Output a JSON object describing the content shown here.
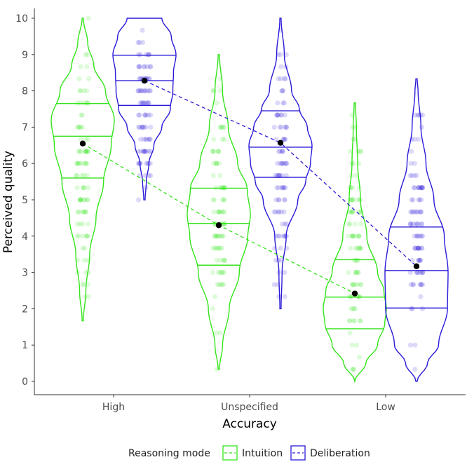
{
  "chart_data": {
    "type": "violin",
    "title": "",
    "xlabel": "Accuracy",
    "ylabel": "Perceived quality",
    "ylim": [
      0,
      10
    ],
    "yticks": [
      0,
      1,
      2,
      3,
      4,
      5,
      6,
      7,
      8,
      9,
      10
    ],
    "categories": [
      "High",
      "Unspecified",
      "Low"
    ],
    "legend": {
      "title": "Reasoning mode",
      "position": "bottom",
      "items": [
        "Intuition",
        "Deliberation"
      ]
    },
    "series": [
      {
        "name": "Intuition",
        "color": "#33e41a",
        "means": [
          6.55,
          4.3,
          2.42
        ],
        "quartiles": [
          {
            "q1": 5.6,
            "median": 6.75,
            "q3": 7.65
          },
          {
            "q1": 3.2,
            "median": 4.35,
            "q3": 5.32
          },
          {
            "q1": 1.45,
            "median": 2.32,
            "q3": 3.35
          }
        ],
        "ranges": [
          [
            1.67,
            10
          ],
          [
            0.33,
            9
          ],
          [
            0,
            7.67
          ]
        ],
        "density_profiles": [
          [
            [
              1.67,
              0.02
            ],
            [
              2.5,
              0.1
            ],
            [
              3.5,
              0.22
            ],
            [
              4.5,
              0.42
            ],
            [
              5.5,
              0.66
            ],
            [
              6.5,
              0.9
            ],
            [
              7.2,
              1.0
            ],
            [
              8.0,
              0.72
            ],
            [
              8.7,
              0.35
            ],
            [
              9.3,
              0.16
            ],
            [
              10,
              0.02
            ]
          ],
          [
            [
              0.33,
              0.02
            ],
            [
              1.0,
              0.12
            ],
            [
              2.0,
              0.33
            ],
            [
              3.0,
              0.65
            ],
            [
              4.0,
              0.92
            ],
            [
              4.6,
              1.0
            ],
            [
              5.3,
              0.9
            ],
            [
              6.0,
              0.6
            ],
            [
              7.0,
              0.3
            ],
            [
              8.0,
              0.12
            ],
            [
              9.0,
              0.02
            ]
          ],
          [
            [
              0,
              0.0
            ],
            [
              0.5,
              0.35
            ],
            [
              1.0,
              0.72
            ],
            [
              1.6,
              0.95
            ],
            [
              2.0,
              1.0
            ],
            [
              2.5,
              0.92
            ],
            [
              3.0,
              0.72
            ],
            [
              4.0,
              0.38
            ],
            [
              5.0,
              0.18
            ],
            [
              6.0,
              0.09
            ],
            [
              7.0,
              0.05
            ],
            [
              7.67,
              0.02
            ]
          ]
        ]
      },
      {
        "name": "Deliberation",
        "color": "#2a1ad8",
        "means": [
          8.28,
          6.57,
          3.17
        ],
        "quartiles": [
          {
            "q1": 7.6,
            "median": 8.28,
            "q3": 8.98
          },
          {
            "q1": 5.62,
            "median": 6.45,
            "q3": 7.45
          },
          {
            "q1": 2.02,
            "median": 3.05,
            "q3": 4.25
          }
        ],
        "ranges": [
          [
            5,
            10
          ],
          [
            2,
            10
          ],
          [
            0,
            8.33
          ]
        ],
        "density_profiles": [
          [
            [
              5.0,
              0.02
            ],
            [
              5.5,
              0.06
            ],
            [
              6.0,
              0.14
            ],
            [
              6.5,
              0.3
            ],
            [
              7.0,
              0.55
            ],
            [
              7.5,
              0.82
            ],
            [
              8.0,
              0.9
            ],
            [
              8.5,
              0.92
            ],
            [
              9.0,
              1.0
            ],
            [
              9.5,
              0.85
            ],
            [
              10.0,
              0.55
            ]
          ],
          [
            [
              2.0,
              0.02
            ],
            [
              3.0,
              0.05
            ],
            [
              4.0,
              0.18
            ],
            [
              5.0,
              0.55
            ],
            [
              5.5,
              0.8
            ],
            [
              6.0,
              0.95
            ],
            [
              6.5,
              1.0
            ],
            [
              7.0,
              0.85
            ],
            [
              7.5,
              0.6
            ],
            [
              8.0,
              0.35
            ],
            [
              9.0,
              0.12
            ],
            [
              10.0,
              0.02
            ]
          ],
          [
            [
              0,
              0.02
            ],
            [
              0.5,
              0.35
            ],
            [
              1.0,
              0.7
            ],
            [
              2.0,
              0.98
            ],
            [
              3.0,
              1.0
            ],
            [
              4.0,
              0.88
            ],
            [
              5.0,
              0.55
            ],
            [
              6.0,
              0.3
            ],
            [
              7.0,
              0.14
            ],
            [
              8.0,
              0.05
            ],
            [
              8.33,
              0.02
            ]
          ]
        ]
      }
    ],
    "points_note": "individual ratings shown as semi-transparent dots along each violin"
  }
}
